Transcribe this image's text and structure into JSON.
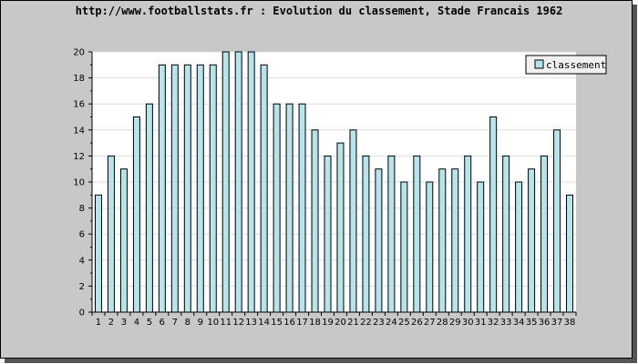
{
  "chart_data": {
    "type": "bar",
    "title": "http://www.footballstats.fr : Evolution du classement, Stade Francais 1962",
    "xlabel": "",
    "ylabel": "",
    "ylim": [
      0,
      20
    ],
    "y_ticks": [
      0,
      2,
      4,
      6,
      8,
      10,
      12,
      14,
      16,
      18,
      20
    ],
    "grid": true,
    "legend_position": "top-right",
    "categories": [
      "1",
      "2",
      "3",
      "4",
      "5",
      "6",
      "7",
      "8",
      "9",
      "10",
      "11",
      "12",
      "13",
      "14",
      "15",
      "16",
      "17",
      "18",
      "19",
      "20",
      "21",
      "22",
      "23",
      "24",
      "25",
      "26",
      "27",
      "28",
      "29",
      "30",
      "31",
      "32",
      "33",
      "34",
      "35",
      "36",
      "37",
      "38"
    ],
    "series": [
      {
        "name": "classement",
        "values": [
          9,
          12,
          11,
          15,
          16,
          19,
          19,
          19,
          19,
          19,
          20,
          20,
          20,
          19,
          16,
          16,
          16,
          14,
          12,
          13,
          14,
          12,
          11,
          12,
          10,
          12,
          10,
          11,
          11,
          12,
          10,
          15,
          12,
          10,
          11,
          12,
          14,
          9
        ]
      }
    ],
    "colors": {
      "bar_fill": "#b4e4ec",
      "bar_stroke": "#000000",
      "plot_bg": "#ffffff",
      "frame_bg": "#c8c8c8",
      "grid": "#dddddd"
    }
  }
}
